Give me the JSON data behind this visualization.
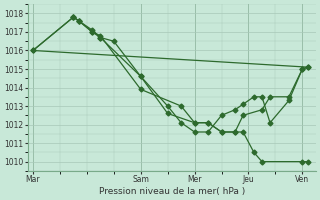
{
  "background_color": "#c8e8d8",
  "grid_color": "#a8c8b8",
  "line_color": "#2d6a2d",
  "marker_color": "#2d6a2d",
  "xlabel": "Pression niveau de la mer( hPa )",
  "ylim": [
    1009.5,
    1018.5
  ],
  "yticks": [
    1010,
    1011,
    1012,
    1013,
    1014,
    1015,
    1016,
    1017,
    1018
  ],
  "xtick_labels": [
    "Mar",
    "Sam",
    "Mer",
    "Jeu",
    "Ven"
  ],
  "day_positions": [
    0,
    4,
    6,
    8,
    10
  ],
  "xlim": [
    -0.2,
    10.5
  ],
  "line_straight": {
    "x": [
      0,
      10.2
    ],
    "y": [
      1016.0,
      1015.1
    ]
  },
  "line_a": {
    "x": [
      0,
      1.5,
      1.7,
      2.2,
      2.5,
      4.0,
      5.0,
      6.0,
      6.5,
      7.0,
      7.5,
      7.8,
      8.2,
      8.5,
      10.0,
      10.2
    ],
    "y": [
      1016.0,
      1017.8,
      1017.6,
      1017.0,
      1016.7,
      1014.6,
      1012.6,
      1012.1,
      1012.1,
      1011.6,
      1011.6,
      1011.6,
      1010.5,
      1010.0,
      1010.0,
      1010.0
    ]
  },
  "line_b": {
    "x": [
      0,
      1.5,
      1.7,
      2.2,
      2.5,
      4.0,
      5.5,
      6.0,
      6.5,
      7.0,
      7.5,
      7.8,
      8.5,
      8.8,
      9.5,
      10.0,
      10.2
    ],
    "y": [
      1016.0,
      1017.8,
      1017.6,
      1017.0,
      1016.8,
      1013.9,
      1013.0,
      1012.1,
      1012.1,
      1011.6,
      1011.6,
      1012.5,
      1012.8,
      1013.5,
      1013.5,
      1015.0,
      1015.1
    ]
  },
  "line_c": {
    "x": [
      1.5,
      1.7,
      2.2,
      2.5,
      3.0,
      4.0,
      5.0,
      5.5,
      6.0,
      6.5,
      7.0,
      7.5,
      7.8,
      8.2,
      8.5,
      8.8,
      9.5,
      10.0,
      10.2
    ],
    "y": [
      1017.8,
      1017.6,
      1017.1,
      1016.7,
      1016.5,
      1014.6,
      1013.0,
      1012.1,
      1011.6,
      1011.6,
      1012.5,
      1012.8,
      1013.1,
      1013.5,
      1013.5,
      1012.1,
      1013.3,
      1015.0,
      1015.1
    ]
  }
}
